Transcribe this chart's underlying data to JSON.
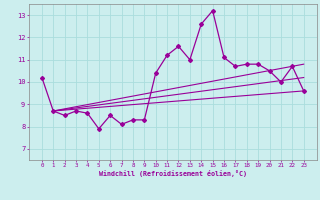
{
  "xlabel": "Windchill (Refroidissement éolien,°C)",
  "x_values": [
    0,
    1,
    2,
    3,
    4,
    5,
    6,
    7,
    8,
    9,
    10,
    11,
    12,
    13,
    14,
    15,
    16,
    17,
    18,
    19,
    20,
    21,
    22,
    23
  ],
  "y_main": [
    10.2,
    8.7,
    8.5,
    8.7,
    8.6,
    7.9,
    8.5,
    8.1,
    8.3,
    8.3,
    10.4,
    11.2,
    11.6,
    11.0,
    12.6,
    13.2,
    11.1,
    10.7,
    10.8,
    10.8,
    10.5,
    10.0,
    10.7,
    9.6
  ],
  "ylim": [
    6.5,
    13.5
  ],
  "yticks": [
    7,
    8,
    9,
    10,
    11,
    12,
    13
  ],
  "xticks": [
    0,
    1,
    2,
    3,
    4,
    5,
    6,
    7,
    8,
    9,
    10,
    11,
    12,
    13,
    14,
    15,
    16,
    17,
    18,
    19,
    20,
    21,
    22,
    23
  ],
  "line_color": "#990099",
  "bg_color": "#cceeee",
  "grid_color": "#aadddd",
  "marker": "D",
  "marker_size": 2.0,
  "trend_lines": [
    {
      "x0": 1,
      "y0": 8.7,
      "x1": 23,
      "y1": 9.6
    },
    {
      "x0": 1,
      "y0": 8.7,
      "x1": 23,
      "y1": 10.2
    },
    {
      "x0": 1,
      "y0": 8.7,
      "x1": 23,
      "y1": 10.8
    }
  ]
}
